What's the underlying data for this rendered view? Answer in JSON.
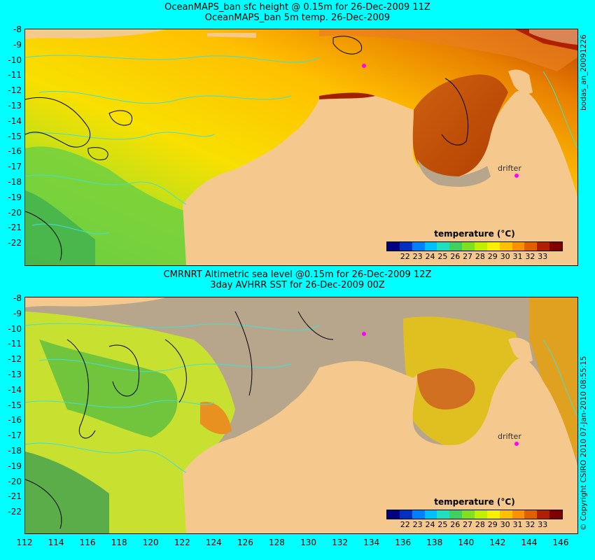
{
  "top_panel": {
    "title_line1": "OceanMAPS_ban sfc height @ 0.15m for 26-Dec-2009 11Z",
    "title_line2": "OceanMAPS_ban 5m temp. 26-Dec-2009",
    "drifter_label": "drifter",
    "side_label": "bodas_an_20091226"
  },
  "bottom_panel": {
    "title_line1": "CMRNRT Altimetric sea level  @0.15m  for 26-Dec-2009 12Z",
    "title_line2": "3day AVHRR SST for 26-Dec-2009 00Z",
    "drifter_label": "drifter",
    "side_label": "© Copyright CSIRO 2010    07-Jan-2010 08:55:15"
  },
  "legend": {
    "title": "temperature (°C)",
    "ticks": [
      "22",
      "23",
      "24",
      "25",
      "26",
      "27",
      "28",
      "29",
      "30",
      "31",
      "32",
      "33"
    ],
    "colors": [
      "#000080",
      "#0030c0",
      "#0080ff",
      "#00c0ff",
      "#20e0c0",
      "#40d060",
      "#80e020",
      "#c0f000",
      "#f8f000",
      "#ffc000",
      "#ff9000",
      "#e06000",
      "#b02000",
      "#800000"
    ]
  },
  "axes": {
    "lat_labels": [
      "-8",
      "-9",
      "-10",
      "-11",
      "-12",
      "-13",
      "-14",
      "-15",
      "-16",
      "-17",
      "-18",
      "-19",
      "-20",
      "-21",
      "-22"
    ],
    "lon_labels": [
      "112",
      "114",
      "116",
      "118",
      "120",
      "122",
      "124",
      "126",
      "128",
      "130",
      "132",
      "134",
      "136",
      "138",
      "140",
      "142",
      "144",
      "146"
    ]
  },
  "colors": {
    "background": "#00ffff",
    "land": "#f5c98e",
    "no_data": "#b8a68c",
    "contour_cyan": "#40e0d0",
    "contour_black": "#000000",
    "drifter": "#ff00ff"
  }
}
